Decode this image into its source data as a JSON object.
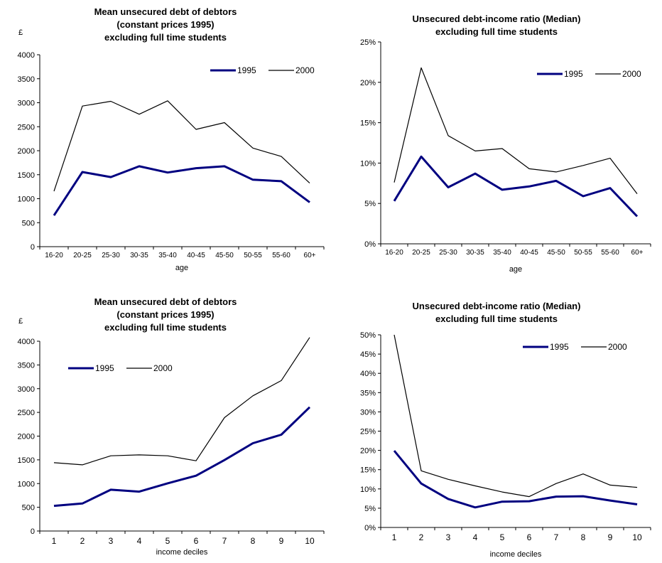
{
  "colors": {
    "series_1995": "#000080",
    "series_2000": "#000000",
    "axis": "#000000"
  },
  "chart_data": [
    {
      "type": "line",
      "title": [
        "Mean unsecured debt of debtors",
        "(constant prices 1995)",
        "excluding full time students"
      ],
      "unit": "£",
      "xlabel": "age",
      "ylabel": "",
      "categories": [
        "16-20",
        "20-25",
        "25-30",
        "30-35",
        "35-40",
        "40-45",
        "45-50",
        "50-55",
        "55-60",
        "60+"
      ],
      "ylim": [
        0,
        4000
      ],
      "yticks": [
        "0",
        "500",
        "1000",
        "1500",
        "2000",
        "2500",
        "3000",
        "3500",
        "4000"
      ],
      "series": [
        {
          "name": "1995",
          "values": [
            650,
            1555,
            1450,
            1675,
            1545,
            1635,
            1675,
            1395,
            1365,
            925
          ]
        },
        {
          "name": "2000",
          "values": [
            1155,
            2930,
            3030,
            2760,
            3040,
            2445,
            2585,
            2055,
            1880,
            1325
          ]
        }
      ],
      "legend": "top-right",
      "grid": false
    },
    {
      "type": "line",
      "title": [
        "Unsecured debt-income ratio (Median)",
        "excluding full time students"
      ],
      "unit": "",
      "xlabel": "age",
      "ylabel": "",
      "categories": [
        "16-20",
        "20-25",
        "25-30",
        "30-35",
        "35-40",
        "40-45",
        "45-50",
        "50-55",
        "55-60",
        "60+"
      ],
      "ylim": [
        0,
        0.25
      ],
      "yticks": [
        "0%",
        "5%",
        "10%",
        "15%",
        "20%",
        "25%"
      ],
      "series": [
        {
          "name": "1995",
          "values": [
            0.053,
            0.108,
            0.07,
            0.087,
            0.067,
            0.071,
            0.078,
            0.059,
            0.069,
            0.034
          ]
        },
        {
          "name": "2000",
          "values": [
            0.076,
            0.218,
            0.134,
            0.115,
            0.118,
            0.093,
            0.089,
            0.097,
            0.106,
            0.062
          ]
        }
      ],
      "legend": "top-right",
      "grid": false
    },
    {
      "type": "line",
      "title": [
        "Mean unsecured debt of debtors",
        "(constant prices 1995)",
        "excluding full time students"
      ],
      "unit": "£",
      "xlabel": "income deciles",
      "ylabel": "",
      "categories": [
        "1",
        "2",
        "3",
        "4",
        "5",
        "6",
        "7",
        "8",
        "9",
        "10"
      ],
      "ylim": [
        0,
        4000
      ],
      "yticks": [
        "0",
        "500",
        "1000",
        "1500",
        "2000",
        "2500",
        "3000",
        "3500",
        "4000"
      ],
      "series": [
        {
          "name": "1995",
          "values": [
            530,
            580,
            870,
            830,
            1005,
            1165,
            1495,
            1850,
            2030,
            2610
          ]
        },
        {
          "name": "2000",
          "values": [
            1440,
            1395,
            1585,
            1605,
            1585,
            1480,
            2390,
            2850,
            3170,
            4080
          ]
        }
      ],
      "legend": "top-left",
      "grid": false
    },
    {
      "type": "line",
      "title": [
        "Unsecured debt-income ratio (Median)",
        "excluding full time students"
      ],
      "unit": "",
      "xlabel": "income deciles",
      "ylabel": "",
      "categories": [
        "1",
        "2",
        "3",
        "4",
        "5",
        "6",
        "7",
        "8",
        "9",
        "10"
      ],
      "ylim": [
        0,
        0.5
      ],
      "yticks": [
        "0%",
        "5%",
        "10%",
        "15%",
        "20%",
        "25%",
        "30%",
        "35%",
        "40%",
        "45%",
        "50%"
      ],
      "series": [
        {
          "name": "1995",
          "values": [
            0.199,
            0.114,
            0.074,
            0.052,
            0.067,
            0.068,
            0.08,
            0.081,
            0.07,
            0.06
          ]
        },
        {
          "name": "2000",
          "values": [
            0.5,
            0.147,
            0.125,
            0.108,
            0.092,
            0.08,
            0.114,
            0.139,
            0.11,
            0.104
          ]
        }
      ],
      "legend": "top-right",
      "grid": false
    }
  ]
}
